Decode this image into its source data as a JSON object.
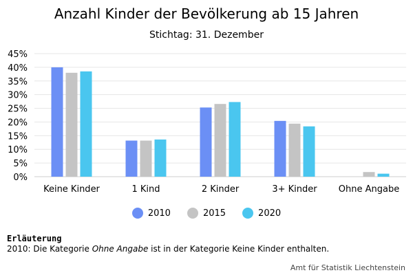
{
  "chart_data": {
    "type": "bar",
    "title": "Anzahl Kinder der Bevölkerung ab 15 Jahren",
    "subtitle": "Stichtag: 31. Dezember",
    "categories": [
      "Keine Kinder",
      "1 Kind",
      "2 Kinder",
      "3+ Kinder",
      "Ohne Angabe"
    ],
    "series": [
      {
        "name": "2010",
        "color": "#6b8ff5",
        "values": [
          40.0,
          13.2,
          25.3,
          20.4,
          0.0
        ]
      },
      {
        "name": "2015",
        "color": "#c4c4c4",
        "values": [
          38.0,
          13.2,
          26.6,
          19.4,
          1.7
        ]
      },
      {
        "name": "2020",
        "color": "#4ac6ef",
        "values": [
          38.5,
          13.6,
          27.3,
          18.4,
          1.1
        ]
      }
    ],
    "ylim": [
      0,
      45
    ],
    "yticks": [
      0,
      5,
      10,
      15,
      20,
      25,
      30,
      35,
      40,
      45
    ],
    "ytick_suffix": "%",
    "grid": true,
    "legend_position": "bottom"
  },
  "note": {
    "heading": "Erläuterung",
    "text_before": "2010: Die Kategorie ",
    "text_italic": "Ohne Angabe",
    "text_after": " ist in der Kategorie Keine Kinder enthalten."
  },
  "source": "Amt für Statistik Liechtenstein"
}
